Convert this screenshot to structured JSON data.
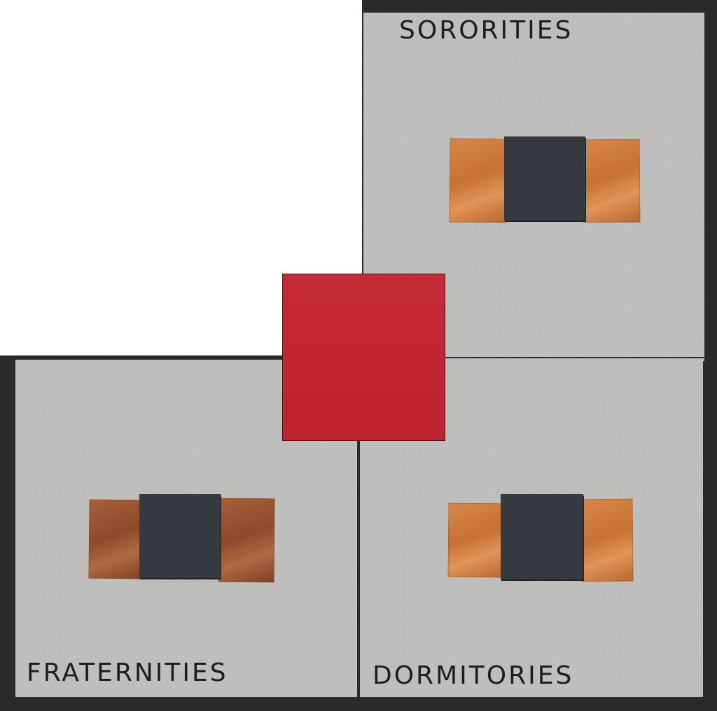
{
  "panels": {
    "top_right": {
      "label": "SORORITIES"
    },
    "bottom_left": {
      "label": "FRATERNITIES"
    },
    "bottom_right": {
      "label": "DORMITORIES"
    }
  },
  "colors": {
    "board_border": "#2a2a2b",
    "panel_gray": "#bebebc",
    "copper": "#c67233",
    "dark_block": "#363b41",
    "red_square": "#c52a37"
  }
}
